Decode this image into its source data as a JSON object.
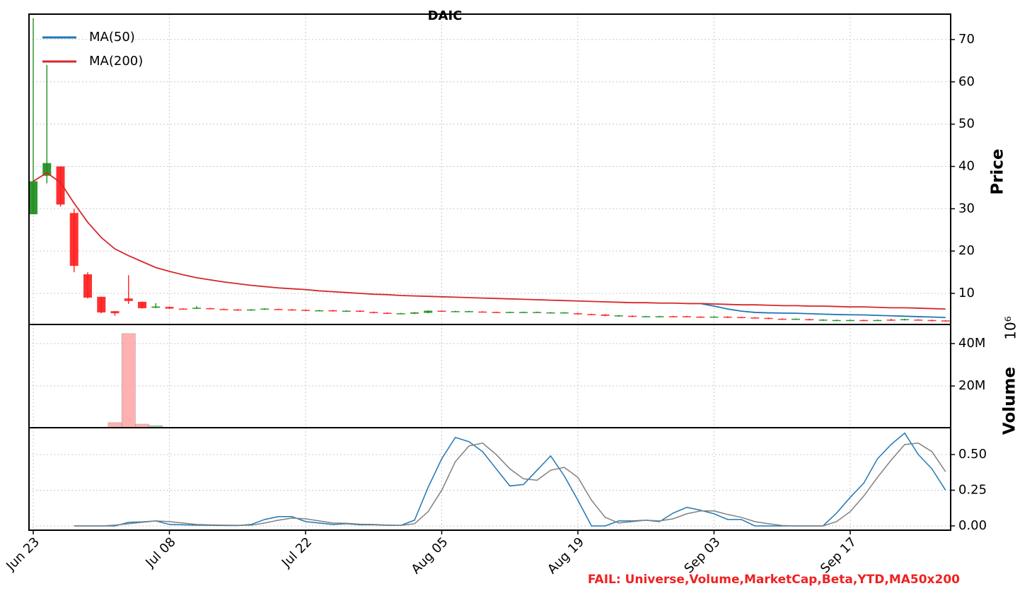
{
  "chart_data": [
    {
      "type": "candlestick",
      "title": "DAIC",
      "annotation": "FAIL: Universe,Volume,MarketCap,Beta,YTD,MA50x200",
      "categories": [
        "Jun 23",
        null,
        null,
        null,
        null,
        null,
        null,
        null,
        null,
        null,
        "Jul 08",
        null,
        null,
        null,
        null,
        null,
        null,
        null,
        null,
        null,
        "Jul 22",
        null,
        null,
        null,
        null,
        null,
        null,
        null,
        null,
        null,
        "Aug 05",
        null,
        null,
        null,
        null,
        null,
        null,
        null,
        null,
        null,
        "Aug 19",
        null,
        null,
        null,
        null,
        null,
        null,
        null,
        null,
        null,
        "Sep 03",
        null,
        null,
        null,
        null,
        null,
        null,
        null,
        null,
        null,
        "Sep 17",
        null,
        null,
        null,
        null,
        null,
        null,
        null
      ],
      "open": [
        28.7,
        37.8,
        40,
        29,
        14.5,
        9.2,
        5.8,
        8.8,
        8,
        6.6,
        6.8,
        6.4,
        6.4,
        6.5,
        6.3,
        6.2,
        6.0,
        6.2,
        6.3,
        6.2,
        6.1,
        5.9,
        6.0,
        5.8,
        5.9,
        5.6,
        5.4,
        5.2,
        5.2,
        5.4,
        5.9,
        5.7,
        5.7,
        5.7,
        5.6,
        5.5,
        5.5,
        5.5,
        5.4,
        5.4,
        5.3,
        5.1,
        5.0,
        4.6,
        4.7,
        4.5,
        4.5,
        4.6,
        4.6,
        4.5,
        4.4,
        4.5,
        4.4,
        4.3,
        4.2,
        4.0,
        3.9,
        3.9,
        3.6,
        3.6,
        3.6,
        3.7,
        3.6,
        3.8,
        3.7,
        3.8,
        3.7,
        3.6
      ],
      "high": [
        75,
        64,
        40,
        30,
        15,
        9.2,
        5.8,
        14.3,
        8.1,
        7.7,
        6.9,
        6.5,
        7.0,
        6.6,
        6.4,
        6.3,
        6.3,
        6.5,
        6.4,
        6.3,
        6.2,
        6.1,
        6.1,
        6.0,
        6.0,
        5.7,
        5.5,
        5.4,
        5.6,
        6.0,
        6.0,
        5.9,
        5.9,
        5.8,
        5.7,
        5.7,
        5.7,
        5.7,
        5.6,
        5.6,
        5.4,
        5.2,
        5.1,
        4.9,
        4.8,
        4.7,
        4.7,
        4.7,
        4.7,
        4.6,
        4.6,
        4.6,
        4.5,
        4.4,
        4.3,
        4.1,
        4.1,
        4.0,
        3.9,
        3.8,
        3.8,
        3.8,
        3.8,
        4.0,
        4.0,
        3.9,
        3.8,
        3.7
      ],
      "low": [
        28.7,
        36,
        30.5,
        15,
        8.8,
        5.3,
        4.7,
        7.5,
        6.4,
        6.5,
        6.3,
        6.2,
        6.3,
        6.3,
        6.1,
        5.9,
        5.9,
        6.1,
        6.1,
        6.0,
        5.9,
        5.8,
        5.7,
        5.7,
        5.6,
        5.3,
        5.2,
        5.1,
        5.1,
        5.3,
        5.7,
        5.6,
        5.6,
        5.5,
        5.4,
        5.4,
        5.4,
        5.4,
        5.3,
        5.3,
        5.0,
        4.9,
        4.6,
        4.5,
        4.4,
        4.4,
        4.4,
        4.4,
        4.4,
        4.3,
        4.3,
        4.2,
        4.2,
        4.1,
        3.9,
        3.8,
        3.8,
        3.6,
        3.5,
        3.5,
        3.5,
        3.5,
        3.5,
        3.5,
        3.6,
        3.6,
        3.4,
        3.4
      ],
      "close": [
        36.5,
        40.8,
        31,
        16.5,
        9,
        5.5,
        5.3,
        8.2,
        6.5,
        6.9,
        6.4,
        6.3,
        6.6,
        6.4,
        6.2,
        6.0,
        6.2,
        6.4,
        6.2,
        6.1,
        6.0,
        6.0,
        5.8,
        5.9,
        5.7,
        5.4,
        5.3,
        5.3,
        5.5,
        5.9,
        5.8,
        5.8,
        5.8,
        5.6,
        5.5,
        5.6,
        5.6,
        5.6,
        5.5,
        5.5,
        5.1,
        5.0,
        4.7,
        4.8,
        4.5,
        4.6,
        4.6,
        4.5,
        4.5,
        4.4,
        4.5,
        4.3,
        4.3,
        4.2,
        4.0,
        3.9,
        4.0,
        3.7,
        3.8,
        3.7,
        3.7,
        3.6,
        3.7,
        3.6,
        3.9,
        3.7,
        3.5,
        3.5
      ],
      "up_color": "#1a8c1a",
      "down_color": "#ff1a1a",
      "series": [
        {
          "name": "MA(50)",
          "color": "#1f77b4",
          "values": [
            null,
            null,
            null,
            null,
            null,
            null,
            null,
            null,
            null,
            null,
            null,
            null,
            null,
            null,
            null,
            null,
            null,
            null,
            null,
            null,
            null,
            null,
            null,
            null,
            null,
            null,
            null,
            null,
            null,
            null,
            null,
            null,
            null,
            null,
            null,
            null,
            null,
            null,
            null,
            null,
            null,
            null,
            null,
            null,
            null,
            null,
            null,
            null,
            7.6,
            7.6,
            7.0,
            6.3,
            5.8,
            5.5,
            5.4,
            5.35,
            5.3,
            5.2,
            5.1,
            5.0,
            4.95,
            4.9,
            4.8,
            4.7,
            4.6,
            4.5,
            4.4,
            4.3
          ]
        },
        {
          "name": "MA(200)",
          "color": "#d62728",
          "values": [
            36.5,
            38.5,
            36.2,
            31.3,
            26.8,
            23.2,
            20.5,
            18.9,
            17.5,
            16.1,
            15.2,
            14.4,
            13.7,
            13.2,
            12.7,
            12.3,
            11.9,
            11.6,
            11.3,
            11.1,
            10.9,
            10.6,
            10.4,
            10.2,
            10.0,
            9.8,
            9.7,
            9.5,
            9.4,
            9.3,
            9.2,
            9.1,
            9.0,
            8.9,
            8.8,
            8.7,
            8.6,
            8.5,
            8.4,
            8.3,
            8.2,
            8.1,
            8.0,
            7.9,
            7.8,
            7.8,
            7.7,
            7.7,
            7.6,
            7.6,
            7.5,
            7.4,
            7.3,
            7.3,
            7.2,
            7.1,
            7.1,
            7.0,
            7.0,
            6.9,
            6.8,
            6.8,
            6.7,
            6.6,
            6.6,
            6.5,
            6.4,
            6.3
          ]
        }
      ],
      "ylabel": "Price",
      "ylim": [
        2.65,
        76
      ],
      "yticks": [
        10,
        20,
        30,
        40,
        50,
        60,
        70
      ],
      "grid": true,
      "legend": "upper left"
    },
    {
      "type": "bar",
      "ylabel": "Volume",
      "offset_label": "10⁶",
      "values": [
        30000,
        40000,
        30000,
        100000,
        300000,
        200000,
        2700000,
        44700000,
        2000000,
        1300000,
        400000,
        200000,
        500000,
        80000,
        60000,
        50000,
        90000,
        70000,
        40000,
        60000,
        50000,
        40000,
        30000,
        50000,
        40000,
        30000,
        60000,
        40000,
        50000,
        90000,
        70000,
        60000,
        40000,
        50000,
        30000,
        40000,
        50000,
        40000,
        30000,
        30000,
        40000,
        50000,
        30000,
        40000,
        30000,
        40000,
        30000,
        50000,
        40000,
        30000,
        40000,
        30000,
        30000,
        40000,
        30000,
        30000,
        40000,
        30000,
        50000,
        60000,
        40000,
        30000,
        40000,
        50000,
        40000,
        30000,
        40000,
        30000
      ],
      "up_color": "#8fd4a8",
      "down_color": "#ffa8a8",
      "ylim": [
        333000,
        49000000
      ],
      "yticks": [
        {
          "value": 20000000,
          "label": "20M"
        },
        {
          "value": 40000000,
          "label": "40M"
        }
      ],
      "grid": true
    },
    {
      "type": "line",
      "series": [
        {
          "color": "#1f77b4",
          "values": [
            null,
            null,
            null,
            0,
            0,
            0,
            0,
            0.025,
            0.028,
            0.035,
            0.01,
            0.008,
            0.005,
            0.004,
            0.003,
            0.002,
            0.01,
            0.045,
            0.065,
            0.065,
            0.03,
            0.02,
            0.01,
            0.015,
            0.008,
            0.008,
            0.004,
            0.004,
            0.04,
            0.27,
            0.47,
            0.62,
            0.59,
            0.52,
            0.4,
            0.28,
            0.29,
            0.39,
            0.49,
            0.35,
            0.18,
            0,
            0,
            0.035,
            0.035,
            0.04,
            0.03,
            0.09,
            0.13,
            0.11,
            0.085,
            0.045,
            0.045,
            0,
            0,
            0,
            0,
            0,
            0,
            0.09,
            0.2,
            0.3,
            0.47,
            0.57,
            0.65,
            0.5,
            0.4,
            0.25
          ]
        },
        {
          "color": "#808080",
          "values": [
            null,
            null,
            null,
            0,
            0,
            0,
            0.005,
            0.015,
            0.025,
            0.035,
            0.03,
            0.02,
            0.01,
            0.007,
            0.005,
            0.004,
            0.005,
            0.02,
            0.04,
            0.055,
            0.05,
            0.035,
            0.02,
            0.018,
            0.012,
            0.01,
            0.006,
            0.004,
            0.015,
            0.1,
            0.25,
            0.45,
            0.56,
            0.58,
            0.5,
            0.4,
            0.33,
            0.32,
            0.39,
            0.41,
            0.34,
            0.18,
            0.06,
            0.02,
            0.03,
            0.04,
            0.035,
            0.05,
            0.085,
            0.105,
            0.105,
            0.08,
            0.06,
            0.03,
            0.015,
            0.003,
            0,
            0,
            0,
            0.03,
            0.1,
            0.21,
            0.34,
            0.46,
            0.57,
            0.58,
            0.52,
            0.38
          ]
        }
      ],
      "ylim": [
        -0.03,
        0.688
      ],
      "yticks": [
        {
          "value": 0,
          "label": "0.00"
        },
        {
          "value": 0.25,
          "label": "0.25"
        },
        {
          "value": 0.5,
          "label": "0.50"
        }
      ],
      "grid": true
    }
  ]
}
